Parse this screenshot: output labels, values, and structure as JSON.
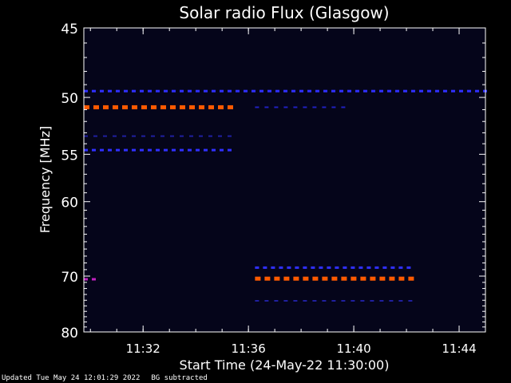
{
  "chart_data": {
    "type": "heatmap",
    "title": "Solar radio Flux (Glasgow)",
    "xlabel": "Start Time (24-May-22 11:30:00)",
    "ylabel": "Frequency [MHz]",
    "xlim": [
      "11:29:45",
      "11:45:00"
    ],
    "ylim": [
      45,
      80
    ],
    "x_ticks": [
      "11:32",
      "11:36",
      "11:40",
      "11:44"
    ],
    "y_ticks": [
      45,
      50,
      55,
      60,
      70,
      80
    ],
    "y_scale": "reciprocal",
    "background_color": "#05051a",
    "series": [
      {
        "freq_mhz": 49.5,
        "start": "11:29:45",
        "end": "11:45:00",
        "intensity": "medium",
        "color": "#3030ff"
      },
      {
        "freq_mhz": 50.8,
        "start": "11:29:45",
        "end": "11:35:30",
        "intensity": "high",
        "color": "#ff5a00"
      },
      {
        "freq_mhz": 50.8,
        "start": "11:36:15",
        "end": "11:39:45",
        "intensity": "low",
        "color": "#2020c0"
      },
      {
        "freq_mhz": 53.3,
        "start": "11:29:45",
        "end": "11:35:30",
        "intensity": "low",
        "color": "#2020a0"
      },
      {
        "freq_mhz": 54.6,
        "start": "11:29:45",
        "end": "11:35:30",
        "intensity": "medium",
        "color": "#3030ff"
      },
      {
        "freq_mhz": 68.7,
        "start": "11:36:15",
        "end": "11:42:15",
        "intensity": "medium",
        "color": "#3030ff"
      },
      {
        "freq_mhz": 70.4,
        "start": "11:36:15",
        "end": "11:42:15",
        "intensity": "high",
        "color": "#ff5a00"
      },
      {
        "freq_mhz": 70.5,
        "start": "11:29:45",
        "end": "11:30:05",
        "intensity": "medium",
        "color": "#c020c0"
      },
      {
        "freq_mhz": 74.1,
        "start": "11:36:15",
        "end": "11:42:15",
        "intensity": "low",
        "color": "#2020a0"
      }
    ]
  },
  "footer": {
    "updated": "Updated Tue May 24 12:01:29 2022",
    "note": "BG subtracted"
  }
}
